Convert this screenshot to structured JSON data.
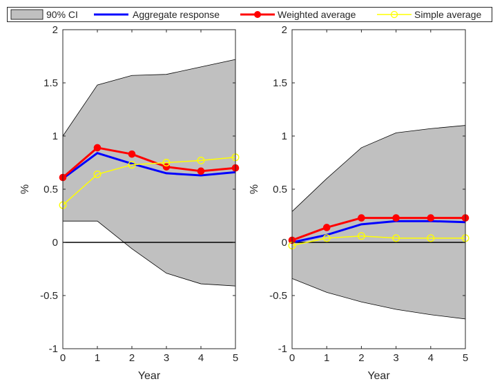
{
  "legend": {
    "items": [
      {
        "key": "ci",
        "label": "90% CI",
        "kind": "patch",
        "color": "#c0c0c0"
      },
      {
        "key": "aggregate",
        "label": "Aggregate response",
        "kind": "line",
        "color": "#0000ff"
      },
      {
        "key": "weighted",
        "label": "Weighted average",
        "kind": "line-dot",
        "color": "#ff0000"
      },
      {
        "key": "simple",
        "label": "Simple average",
        "kind": "line-circle",
        "color": "#ffff00"
      }
    ]
  },
  "chart_data": [
    {
      "type": "line",
      "panel": "left",
      "x": [
        0,
        1,
        2,
        3,
        4,
        5
      ],
      "xlabel": "Year",
      "ylabel": "%",
      "xlim": [
        0,
        5
      ],
      "ylim": [
        -1,
        2
      ],
      "xticks": [
        "0",
        "1",
        "2",
        "3",
        "4",
        "5"
      ],
      "yticks": [
        "-1",
        "-0.5",
        "0",
        "0.5",
        "1",
        "1.5",
        "2"
      ],
      "grid": false,
      "ci_upper": [
        1.0,
        1.48,
        1.57,
        1.58,
        1.65,
        1.72
      ],
      "ci_lower": [
        0.2,
        0.2,
        -0.06,
        -0.29,
        -0.39,
        -0.41
      ],
      "series": [
        {
          "name": "Aggregate response",
          "key": "aggregate",
          "values": [
            0.6,
            0.84,
            0.74,
            0.65,
            0.63,
            0.66
          ]
        },
        {
          "name": "Weighted average",
          "key": "weighted",
          "values": [
            0.61,
            0.89,
            0.83,
            0.71,
            0.67,
            0.7
          ]
        },
        {
          "name": "Simple average",
          "key": "simple",
          "values": [
            0.35,
            0.64,
            0.73,
            0.75,
            0.77,
            0.8
          ]
        }
      ]
    },
    {
      "type": "line",
      "panel": "right",
      "x": [
        0,
        1,
        2,
        3,
        4,
        5
      ],
      "xlabel": "Year",
      "ylabel": "%",
      "xlim": [
        0,
        5
      ],
      "ylim": [
        -1,
        2
      ],
      "xticks": [
        "0",
        "1",
        "2",
        "3",
        "4",
        "5"
      ],
      "yticks": [
        "-1",
        "-0.5",
        "0",
        "0.5",
        "1",
        "1.5",
        "2"
      ],
      "grid": false,
      "ci_upper": [
        0.29,
        0.6,
        0.89,
        1.03,
        1.07,
        1.1
      ],
      "ci_lower": [
        -0.34,
        -0.47,
        -0.56,
        -0.63,
        -0.68,
        -0.72
      ],
      "series": [
        {
          "name": "Aggregate response",
          "key": "aggregate",
          "values": [
            0.0,
            0.07,
            0.17,
            0.2,
            0.2,
            0.19
          ]
        },
        {
          "name": "Weighted average",
          "key": "weighted",
          "values": [
            0.02,
            0.14,
            0.23,
            0.23,
            0.23,
            0.23
          ]
        },
        {
          "name": "Simple average",
          "key": "simple",
          "values": [
            -0.03,
            0.04,
            0.06,
            0.04,
            0.04,
            0.04
          ]
        }
      ]
    }
  ]
}
